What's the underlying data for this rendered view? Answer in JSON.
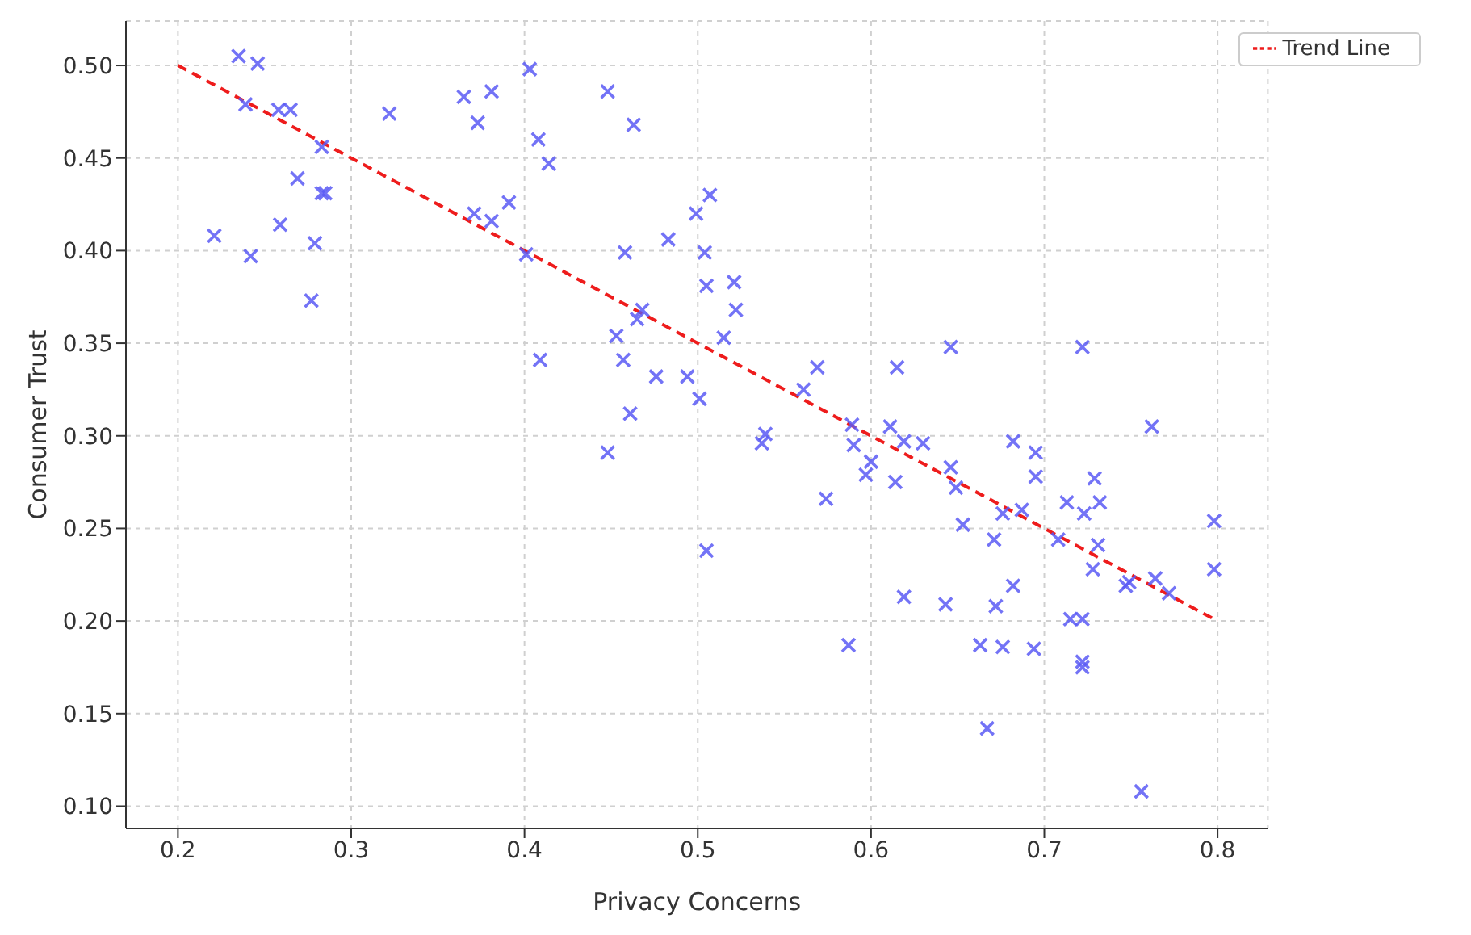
{
  "chart_data": {
    "type": "scatter",
    "xlabel": "Privacy Concerns",
    "ylabel": "Consumer Trust",
    "xlim": [
      0.17,
      0.829
    ],
    "ylim": [
      0.088,
      0.524
    ],
    "xticks": [
      0.2,
      0.3,
      0.4,
      0.5,
      0.6,
      0.7,
      0.8
    ],
    "yticks": [
      {
        "value": 0.1,
        "label": "0.10"
      },
      {
        "value": 0.15,
        "label": "0.15"
      },
      {
        "value": 0.2,
        "label": "0.20"
      },
      {
        "value": 0.25,
        "label": "0.25"
      },
      {
        "value": 0.3,
        "label": "0.30"
      },
      {
        "value": 0.35,
        "label": "0.35"
      },
      {
        "value": 0.4,
        "label": "0.40"
      },
      {
        "value": 0.45,
        "label": "0.45"
      },
      {
        "value": 0.5,
        "label": "0.50"
      }
    ],
    "grid": true,
    "legend": "top right",
    "series": [
      {
        "color": "#5a5af5",
        "marker": "cross",
        "x": [
          0.235,
          0.246,
          0.239,
          0.258,
          0.265,
          0.221,
          0.242,
          0.259,
          0.269,
          0.279,
          0.277,
          0.283,
          0.283,
          0.285,
          0.322,
          0.365,
          0.381,
          0.373,
          0.371,
          0.381,
          0.391,
          0.401,
          0.403,
          0.408,
          0.414,
          0.409,
          0.448,
          0.463,
          0.458,
          0.483,
          0.499,
          0.507,
          0.504,
          0.505,
          0.521,
          0.522,
          0.515,
          0.453,
          0.457,
          0.468,
          0.465,
          0.476,
          0.494,
          0.501,
          0.461,
          0.448,
          0.505,
          0.537,
          0.539,
          0.561,
          0.569,
          0.574,
          0.587,
          0.589,
          0.59,
          0.597,
          0.6,
          0.611,
          0.615,
          0.614,
          0.619,
          0.619,
          0.63,
          0.643,
          0.646,
          0.646,
          0.649,
          0.653,
          0.663,
          0.667,
          0.671,
          0.672,
          0.676,
          0.676,
          0.682,
          0.687,
          0.682,
          0.694,
          0.695,
          0.695,
          0.722,
          0.762,
          0.713,
          0.723,
          0.729,
          0.732,
          0.708,
          0.731,
          0.728,
          0.715,
          0.722,
          0.722,
          0.722,
          0.747,
          0.749,
          0.764,
          0.772,
          0.798,
          0.798,
          0.756
        ],
        "values": [
          0.505,
          0.501,
          0.479,
          0.476,
          0.476,
          0.408,
          0.397,
          0.414,
          0.439,
          0.404,
          0.373,
          0.456,
          0.431,
          0.431,
          0.474,
          0.483,
          0.486,
          0.469,
          0.42,
          0.416,
          0.426,
          0.398,
          0.498,
          0.46,
          0.447,
          0.341,
          0.486,
          0.468,
          0.399,
          0.406,
          0.42,
          0.43,
          0.399,
          0.381,
          0.383,
          0.368,
          0.353,
          0.354,
          0.341,
          0.368,
          0.363,
          0.332,
          0.332,
          0.32,
          0.312,
          0.291,
          0.238,
          0.296,
          0.301,
          0.325,
          0.337,
          0.266,
          0.187,
          0.306,
          0.295,
          0.279,
          0.286,
          0.305,
          0.337,
          0.275,
          0.297,
          0.213,
          0.296,
          0.209,
          0.348,
          0.283,
          0.272,
          0.252,
          0.187,
          0.142,
          0.244,
          0.208,
          0.186,
          0.258,
          0.297,
          0.26,
          0.219,
          0.185,
          0.291,
          0.278,
          0.348,
          0.305,
          0.264,
          0.258,
          0.277,
          0.264,
          0.244,
          0.241,
          0.228,
          0.201,
          0.201,
          0.178,
          0.175,
          0.219,
          0.221,
          0.223,
          0.215,
          0.254,
          0.228,
          0.108
        ]
      },
      {
        "type": "line",
        "name": "Trend Line",
        "color": "#ee1c1c",
        "line_style": "dashed",
        "marker": "none",
        "x": [
          0.2,
          0.8
        ],
        "values": [
          0.5,
          0.2
        ]
      }
    ]
  }
}
